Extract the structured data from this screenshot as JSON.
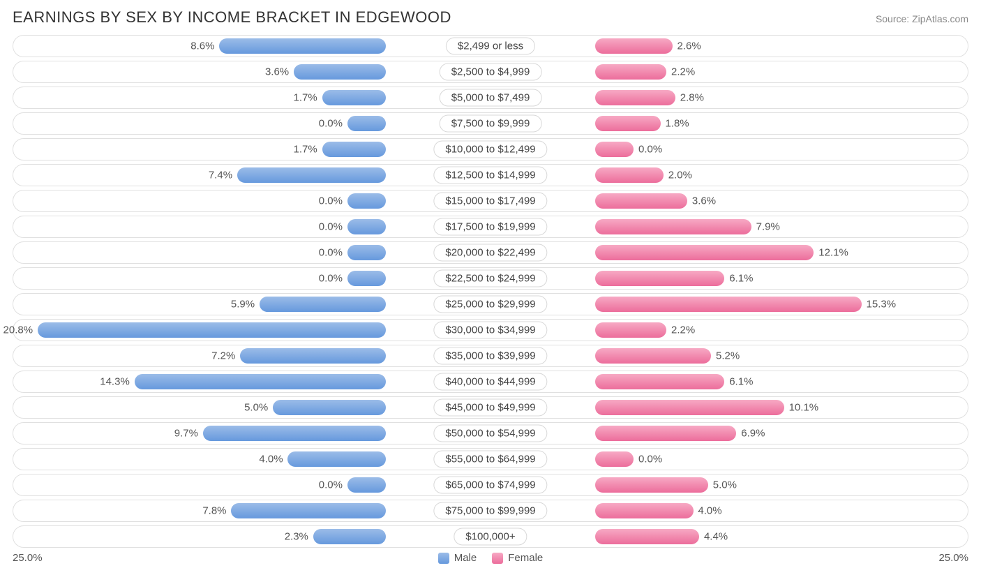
{
  "title": "EARNINGS BY SEX BY INCOME BRACKET IN EDGEWOOD",
  "source": "Source: ZipAtlas.com",
  "axis_max": 25.0,
  "axis_label_left": "25.0%",
  "axis_label_right": "25.0%",
  "label_half_width_pct": 11.0,
  "colors": {
    "male_top": "#9bbce8",
    "male_bottom": "#6699dd",
    "female_top": "#f7a9c4",
    "female_bottom": "#ec6d9b",
    "row_border": "#e0e0e0",
    "text": "#555555",
    "title_text": "#333333",
    "source_text": "#888888",
    "background": "#ffffff"
  },
  "legend": {
    "male": "Male",
    "female": "Female"
  },
  "rows": [
    {
      "label": "$2,499 or less",
      "male": 8.6,
      "female": 2.6
    },
    {
      "label": "$2,500 to $4,999",
      "male": 3.6,
      "female": 2.2
    },
    {
      "label": "$5,000 to $7,499",
      "male": 1.7,
      "female": 2.8
    },
    {
      "label": "$7,500 to $9,999",
      "male": 0.0,
      "female": 1.8
    },
    {
      "label": "$10,000 to $12,499",
      "male": 1.7,
      "female": 0.0
    },
    {
      "label": "$12,500 to $14,999",
      "male": 7.4,
      "female": 2.0
    },
    {
      "label": "$15,000 to $17,499",
      "male": 0.0,
      "female": 3.6
    },
    {
      "label": "$17,500 to $19,999",
      "male": 0.0,
      "female": 7.9
    },
    {
      "label": "$20,000 to $22,499",
      "male": 0.0,
      "female": 12.1
    },
    {
      "label": "$22,500 to $24,999",
      "male": 0.0,
      "female": 6.1
    },
    {
      "label": "$25,000 to $29,999",
      "male": 5.9,
      "female": 15.3
    },
    {
      "label": "$30,000 to $34,999",
      "male": 20.8,
      "female": 2.2
    },
    {
      "label": "$35,000 to $39,999",
      "male": 7.2,
      "female": 5.2
    },
    {
      "label": "$40,000 to $44,999",
      "male": 14.3,
      "female": 6.1
    },
    {
      "label": "$45,000 to $49,999",
      "male": 5.0,
      "female": 10.1
    },
    {
      "label": "$50,000 to $54,999",
      "male": 9.7,
      "female": 6.9
    },
    {
      "label": "$55,000 to $64,999",
      "male": 4.0,
      "female": 0.0
    },
    {
      "label": "$65,000 to $74,999",
      "male": 0.0,
      "female": 5.0
    },
    {
      "label": "$75,000 to $99,999",
      "male": 7.8,
      "female": 4.0
    },
    {
      "label": "$100,000+",
      "male": 2.3,
      "female": 4.4
    }
  ]
}
